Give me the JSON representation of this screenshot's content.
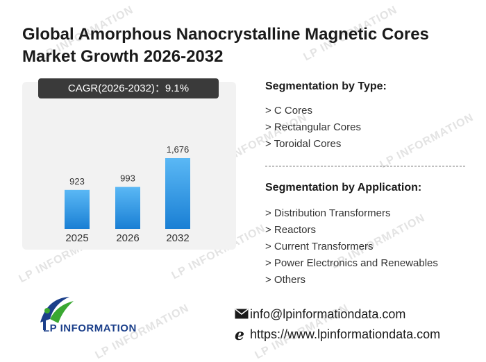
{
  "title": "Global Amorphous Nanocrystalline Magnetic Cores Market Growth 2026-2032",
  "cagr_label": "CAGR(2026-2032)：9.1%",
  "chart_data": {
    "type": "bar",
    "categories": [
      "2025",
      "2026",
      "2032"
    ],
    "values": [
      923,
      993,
      1676
    ],
    "value_labels": [
      "923",
      "993",
      "1,676"
    ],
    "title": "",
    "xlabel": "",
    "ylabel": "",
    "ylim": [
      0,
      1900
    ],
    "grid": false,
    "bar_color_top": "#5ab8f5",
    "bar_color_bottom": "#1a7fd4"
  },
  "segmentation_type": {
    "heading": "Segmentation by Type:",
    "items": [
      "> C Cores",
      "> Rectangular Cores",
      "> Toroidal Cores"
    ]
  },
  "segmentation_application": {
    "heading": "Segmentation by Application:",
    "items": [
      "> Distribution Transformers",
      "> Reactors",
      "> Current Transformers",
      "> Power Electronics and Renewables",
      "> Others"
    ]
  },
  "logo": {
    "text": "LP INFORMATION",
    "icon": "lp-logo-icon"
  },
  "watermark": "LP INFORMATION",
  "contact": {
    "email": "info@lpinformationdata.com",
    "website": "https://www.lpinformationdata.com",
    "email_icon": "envelope-icon",
    "web_icon": "browser-e-icon"
  },
  "colors": {
    "badge_bg": "#3a3a3a",
    "panel_bg": "#f2f2f2",
    "logo_blue": "#1b3f8a",
    "logo_green": "#3aa832"
  }
}
